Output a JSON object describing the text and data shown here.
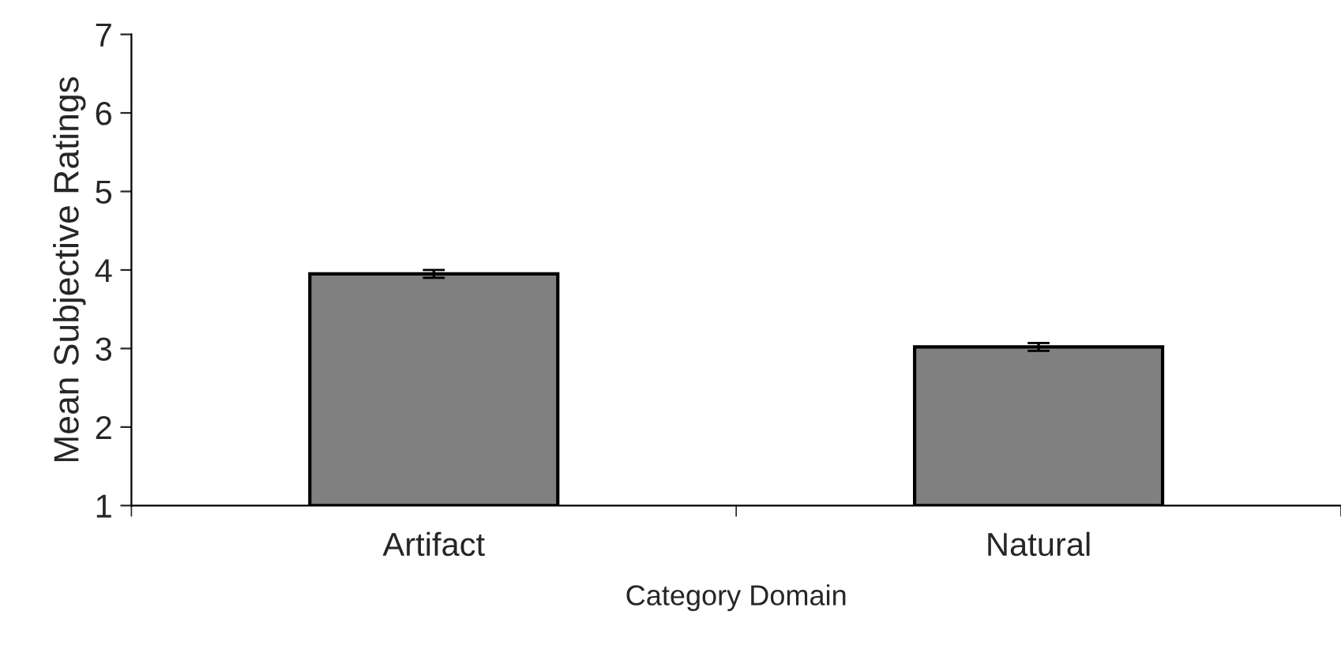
{
  "chart_data": {
    "type": "bar",
    "xlabel": "Category Domain",
    "ylabel": "Mean Subjective Ratings",
    "categories": [
      "Artifact",
      "Natural"
    ],
    "values": [
      3.95,
      3.02
    ],
    "errors": [
      0.05,
      0.05
    ],
    "color": "#808080",
    "ylim": [
      1,
      7
    ],
    "yticks": [
      1,
      2,
      3,
      4,
      5,
      6,
      7
    ],
    "grid": false,
    "legend": false
  }
}
